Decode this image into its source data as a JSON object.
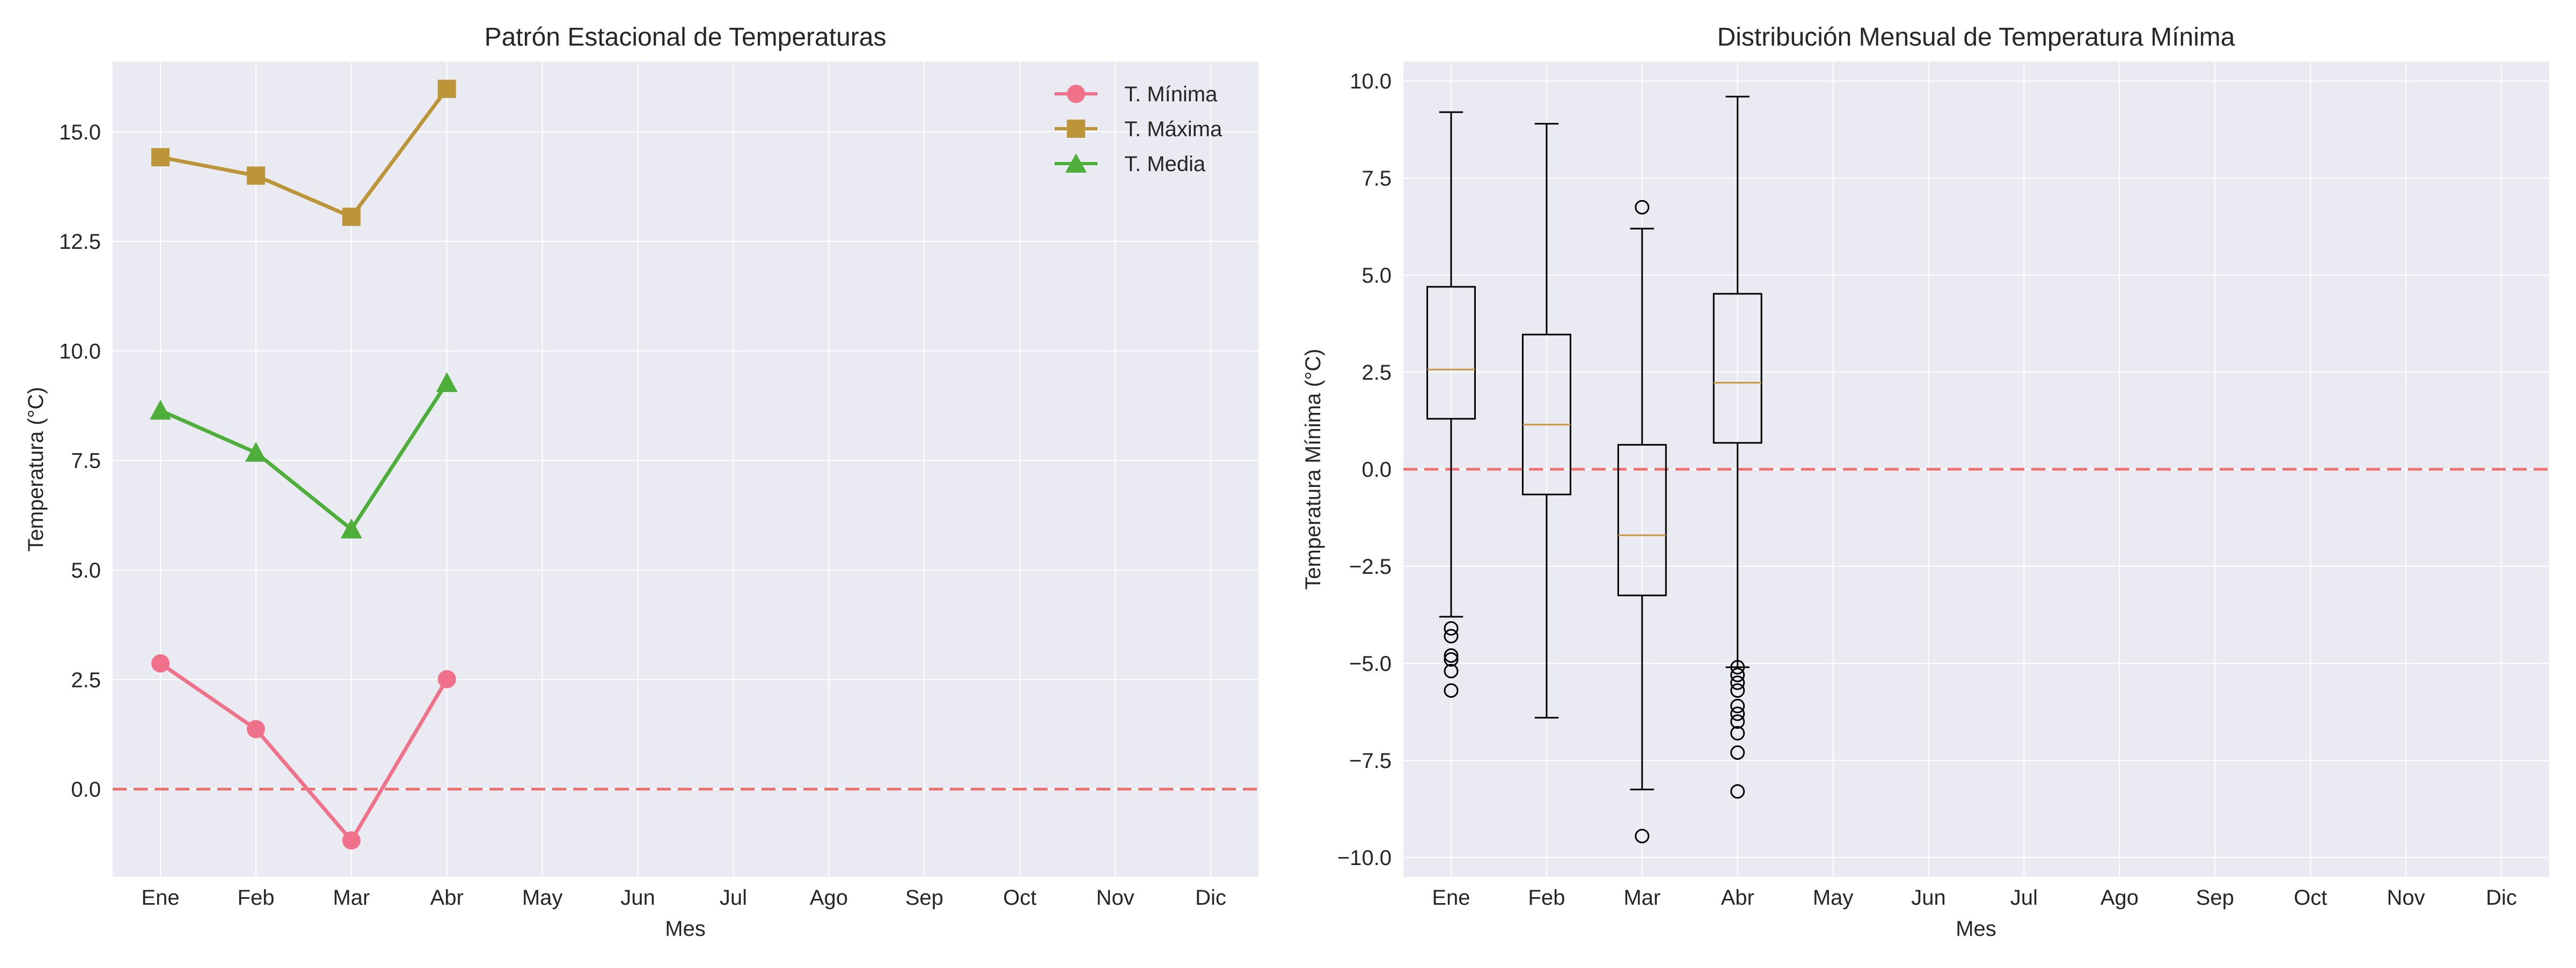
{
  "charts": [
    {
      "type": "line",
      "title": "Patrón Estacional de Temperaturas",
      "xlabel": "Mes",
      "ylabel": "Temperatura (°C)",
      "categories": [
        "Ene",
        "Feb",
        "Mar",
        "Abr",
        "May",
        "Jun",
        "Jul",
        "Ago",
        "Sep",
        "Oct",
        "Nov",
        "Dic"
      ],
      "ylim": [
        -2,
        16.6
      ],
      "yticks": [
        0.0,
        2.5,
        5.0,
        7.5,
        10.0,
        12.5,
        15.0
      ],
      "ytick_labels": [
        "0.0",
        "2.5",
        "5.0",
        "7.5",
        "10.0",
        "12.5",
        "15.0"
      ],
      "reference_line": {
        "y": 0,
        "color": "#f07070",
        "style": "dashed"
      },
      "grid": true,
      "legend_position": "top-right",
      "series": [
        {
          "name": "T. Mínima",
          "color": "#f0728a",
          "marker": "circle",
          "values": [
            2.87,
            1.37,
            -1.17,
            2.51
          ]
        },
        {
          "name": "T. Máxima",
          "color": "#bb9538",
          "marker": "square",
          "values": [
            14.42,
            14.0,
            13.06,
            15.98
          ]
        },
        {
          "name": "T. Media",
          "color": "#4eae3a",
          "marker": "triangle",
          "values": [
            8.64,
            7.68,
            5.93,
            9.27
          ]
        }
      ]
    },
    {
      "type": "box",
      "title": "Distribución Mensual de Temperatura Mínima",
      "xlabel": "Mes",
      "ylabel": "Temperatura Mínima (°C)",
      "categories": [
        "Ene",
        "Feb",
        "Mar",
        "Abr",
        "May",
        "Jun",
        "Jul",
        "Ago",
        "Sep",
        "Oct",
        "Nov",
        "Dic"
      ],
      "ylim": [
        -10.5,
        10.5
      ],
      "yticks": [
        -10.0,
        -7.5,
        -5.0,
        -2.5,
        0.0,
        2.5,
        5.0,
        7.5,
        10.0
      ],
      "ytick_labels": [
        "−10.0",
        "−7.5",
        "−5.0",
        "−2.5",
        "0.0",
        "2.5",
        "5.0",
        "7.5",
        "10.0"
      ],
      "reference_line": {
        "y": 0,
        "color": "#f07070",
        "style": "dashed"
      },
      "grid": true,
      "median_color": "#c8963e",
      "boxes": [
        {
          "category": "Ene",
          "whislo": -3.8,
          "q1": 1.3,
          "med": 2.57,
          "q3": 4.7,
          "whishi": 9.2,
          "fliers": [
            -4.1,
            -4.3,
            -4.8,
            -4.9,
            -5.2,
            -5.7
          ]
        },
        {
          "category": "Feb",
          "whislo": -6.4,
          "q1": -0.65,
          "med": 1.15,
          "q3": 3.47,
          "whishi": 8.9,
          "fliers": []
        },
        {
          "category": "Mar",
          "whislo": -8.25,
          "q1": -3.25,
          "med": -1.7,
          "q3": 0.63,
          "whishi": 6.2,
          "fliers": [
            6.75,
            -9.45
          ]
        },
        {
          "category": "Abr",
          "whislo": -5.1,
          "q1": 0.68,
          "med": 2.23,
          "q3": 4.52,
          "whishi": 9.6,
          "fliers": [
            -5.1,
            -5.3,
            -5.5,
            -5.7,
            -6.1,
            -6.3,
            -6.5,
            -6.8,
            -7.3,
            -8.3
          ]
        }
      ]
    }
  ]
}
